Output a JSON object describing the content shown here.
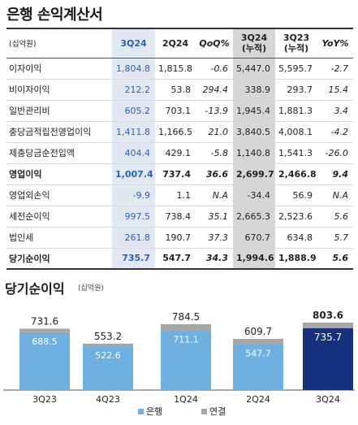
{
  "page": {
    "title": "은행 손익계산서",
    "unit": "(십억원)"
  },
  "table": {
    "headers": [
      "3Q24",
      "2Q24",
      "QoQ%",
      "3Q24\n(누적)",
      "3Q23\n(누적)",
      "YoY%"
    ],
    "rows": [
      {
        "label": "이자이익",
        "bold": false,
        "values": [
          "1,804.8",
          "1,815.8",
          "-0.6",
          "5,447.0",
          "5,595.7",
          "-2.7"
        ]
      },
      {
        "label": "비이자이익",
        "bold": false,
        "values": [
          "212.2",
          "53.8",
          "294.4",
          "338.9",
          "293.7",
          "15.4"
        ]
      },
      {
        "label": "일반관리비",
        "bold": false,
        "values": [
          "605.2",
          "703.1",
          "-13.9",
          "1,945.4",
          "1,881.3",
          "3.4"
        ]
      },
      {
        "label": "충당금적립전영업이익",
        "bold": false,
        "values": [
          "1,411.8",
          "1,166.5",
          "21.0",
          "3,840.5",
          "4,008.1",
          "-4.2"
        ]
      },
      {
        "label": "제충당금순전입액",
        "bold": false,
        "values": [
          "404.4",
          "429.1",
          "-5.8",
          "1,140.8",
          "1,541.3",
          "-26.0"
        ]
      },
      {
        "label": "영업이익",
        "bold": true,
        "values": [
          "1,007.4",
          "737.4",
          "36.6",
          "2,699.7",
          "2,466.8",
          "9.4"
        ]
      },
      {
        "label": "영업외손익",
        "bold": false,
        "values": [
          "-9.9",
          "1.1",
          "N.A",
          "-34.4",
          "56.9",
          "N.A"
        ]
      },
      {
        "label": "세전순이익",
        "bold": false,
        "values": [
          "997.5",
          "738.4",
          "35.1",
          "2,665.3",
          "2,523.6",
          "5.6"
        ]
      },
      {
        "label": "법인세",
        "bold": false,
        "values": [
          "261.8",
          "190.7",
          "37.3",
          "670.7",
          "634.8",
          "5.7"
        ]
      },
      {
        "label": "당기순이익",
        "bold": true,
        "values": [
          "735.7",
          "547.7",
          "34.3",
          "1,994.6",
          "1,888.9",
          "5.6"
        ]
      }
    ]
  },
  "section2": {
    "title": "당기순이익",
    "unit": "(십억원)"
  },
  "chart_data": {
    "type": "bar",
    "stacked": true,
    "categories": [
      "3Q23",
      "4Q23",
      "1Q24",
      "2Q24",
      "3Q24"
    ],
    "series": [
      {
        "name": "은행",
        "values": [
          688.5,
          522.6,
          711.1,
          547.7,
          735.7
        ],
        "color": "#6fb0e3"
      },
      {
        "name": "연결",
        "values": [
          43.1,
          30.6,
          73.4,
          62.0,
          67.9
        ],
        "color": "#a6a6a6"
      }
    ],
    "totals": [
      "731.6",
      "553.2",
      "784.5",
      "609.7",
      "803.6"
    ],
    "bank_labels": [
      "688.5",
      "522.6",
      "711.1",
      "547.7",
      "735.7"
    ],
    "highlight_color": "#15307f",
    "highlight_index": 4,
    "legend_position": "bottom"
  }
}
